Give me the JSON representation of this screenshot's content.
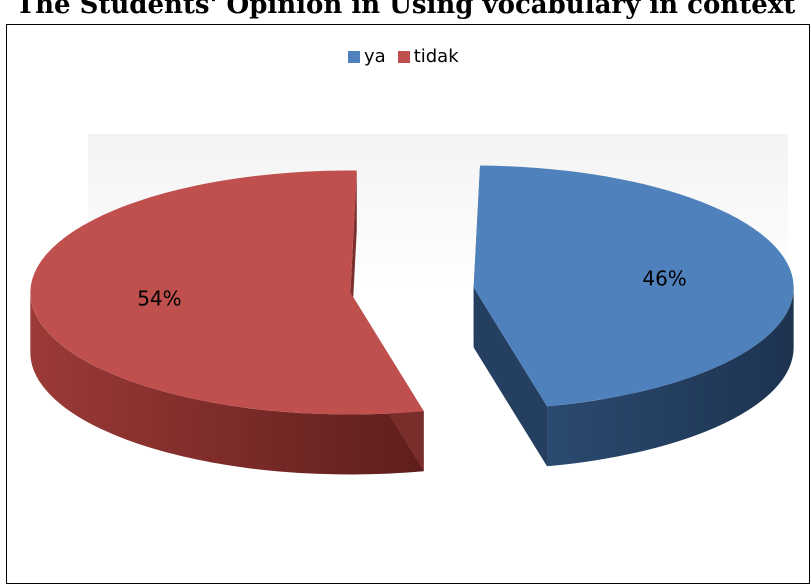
{
  "chart_data": {
    "type": "pie",
    "title": "The Students' Opinion in Using vocabulary in context",
    "legend_position": "top",
    "slices": [
      {
        "label": "ya",
        "value": 46,
        "display": "46%",
        "color": "#4F81BD",
        "side": "#243F60"
      },
      {
        "label": "tidak",
        "value": 54,
        "display": "54%",
        "color": "#C0504D",
        "side": "#7A2E2C"
      }
    ]
  }
}
